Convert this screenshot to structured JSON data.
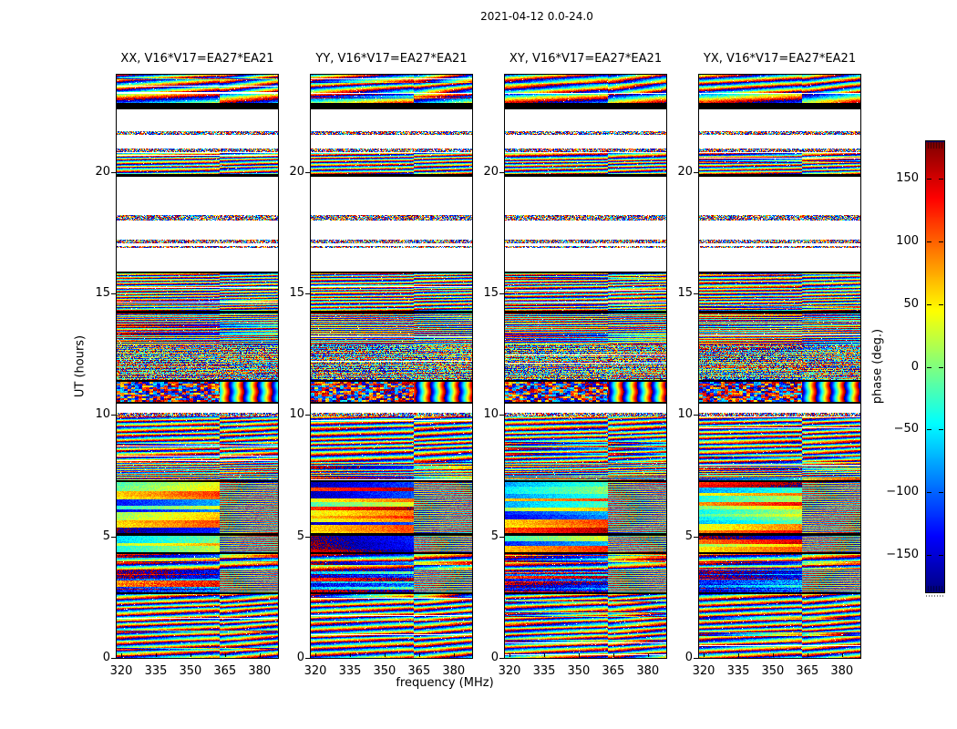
{
  "figure": {
    "background": "#ffffff",
    "frame_color": "#000000",
    "text_color": "#000000"
  },
  "chart_data": {
    "type": "heatmap",
    "suptitle": "2021-04-12 0.0-24.0",
    "date": "2021-04-12",
    "time_range_hours": [
      0.0,
      24.0
    ],
    "baseline": "V16*V17=EA27*EA21",
    "panels": [
      {
        "pol": "XX",
        "title": "XX, V16*V17=EA27*EA21"
      },
      {
        "pol": "YY",
        "title": "YY, V16*V17=EA27*EA21"
      },
      {
        "pol": "XY",
        "title": "XY, V16*V17=EA27*EA21"
      },
      {
        "pol": "YX",
        "title": "YX, V16*V17=EA27*EA21"
      }
    ],
    "x": {
      "label": "frequency (MHz)",
      "ticks": [
        320,
        335,
        350,
        365,
        380
      ],
      "lim": [
        318,
        388
      ],
      "unit": "MHz"
    },
    "y": {
      "label": "UT (hours)",
      "ticks": [
        0,
        5,
        10,
        15,
        20
      ],
      "lim": [
        0,
        24
      ],
      "unit": "hours"
    },
    "colorbar": {
      "label": "phase (deg.)",
      "ticks": [
        150,
        100,
        50,
        0,
        -50,
        -100,
        -150
      ],
      "lim": [
        -180,
        180
      ],
      "colormap": "jet"
    },
    "grid": false,
    "legend": null,
    "texture_seam_freq_frac": 0.64,
    "time_segments": [
      {
        "ut0": 23.25,
        "ut1": 24.0,
        "kind": "stripes",
        "rf": 50,
        "slope": 3.0
      },
      {
        "ut0": 22.85,
        "ut1": 23.2,
        "kind": "stripes",
        "rf": 28,
        "slope": 1.2
      },
      {
        "ut0": 22.58,
        "ut1": 22.82,
        "kind": "black"
      },
      {
        "ut0": 21.52,
        "ut1": 21.68,
        "kind": "thin"
      },
      {
        "ut0": 20.82,
        "ut1": 20.97,
        "kind": "thin"
      },
      {
        "ut0": 19.9,
        "ut1": 20.78,
        "kind": "stripes",
        "rf": 85,
        "slope": 1.2
      },
      {
        "ut0": 19.8,
        "ut1": 19.9,
        "kind": "black"
      },
      {
        "ut0": 18.0,
        "ut1": 18.22,
        "kind": "thin"
      },
      {
        "ut0": 17.08,
        "ut1": 17.2,
        "kind": "thin"
      },
      {
        "ut0": 16.86,
        "ut1": 16.96,
        "kind": "thin"
      },
      {
        "ut0": 15.83,
        "ut1": 15.91,
        "kind": "black"
      },
      {
        "ut0": 14.3,
        "ut1": 15.83,
        "kind": "stripes",
        "rf": 100,
        "slope": 0.9
      },
      {
        "ut0": 14.18,
        "ut1": 14.3,
        "kind": "black"
      },
      {
        "ut0": 12.9,
        "ut1": 14.18,
        "kind": "fine",
        "rf": 150,
        "slope": 0.6
      },
      {
        "ut0": 11.45,
        "ut1": 12.9,
        "kind": "fine",
        "rf": 165,
        "slope": 0.5,
        "speckle": 0.45
      },
      {
        "ut0": 11.35,
        "ut1": 11.45,
        "kind": "black"
      },
      {
        "ut0": 10.55,
        "ut1": 11.35,
        "kind": "wavy"
      },
      {
        "ut0": 10.45,
        "ut1": 10.55,
        "kind": "black"
      },
      {
        "ut0": 9.92,
        "ut1": 10.08,
        "kind": "thin"
      },
      {
        "ut0": 8.05,
        "ut1": 9.92,
        "kind": "stripes",
        "rf": 70,
        "slope": 1.6
      },
      {
        "ut0": 7.3,
        "ut1": 8.05,
        "kind": "fine",
        "rf": 140,
        "slope": 0.8
      },
      {
        "ut0": 7.22,
        "ut1": 7.3,
        "kind": "black"
      },
      {
        "ut0": 5.12,
        "ut1": 7.22,
        "kind": "blocky"
      },
      {
        "ut0": 5.04,
        "ut1": 5.12,
        "kind": "black"
      },
      {
        "ut0": 4.35,
        "ut1": 5.04,
        "kind": "blocky"
      },
      {
        "ut0": 4.27,
        "ut1": 4.35,
        "kind": "black"
      },
      {
        "ut0": 3.65,
        "ut1": 4.27,
        "kind": "stripes",
        "rf": 45,
        "slope": 1.0,
        "redrows": true
      },
      {
        "ut0": 2.7,
        "ut1": 3.65,
        "kind": "blocky2"
      },
      {
        "ut0": 2.62,
        "ut1": 2.7,
        "kind": "black"
      },
      {
        "ut0": 0.0,
        "ut1": 2.62,
        "kind": "stripes",
        "rf": 58,
        "slope": 2.4
      }
    ],
    "panel_render": [
      {
        "seed": 17,
        "bias": -60
      },
      {
        "seed": 29,
        "bias": 95
      },
      {
        "seed": 43,
        "bias": -15
      },
      {
        "seed": 59,
        "bias": 40
      }
    ]
  }
}
